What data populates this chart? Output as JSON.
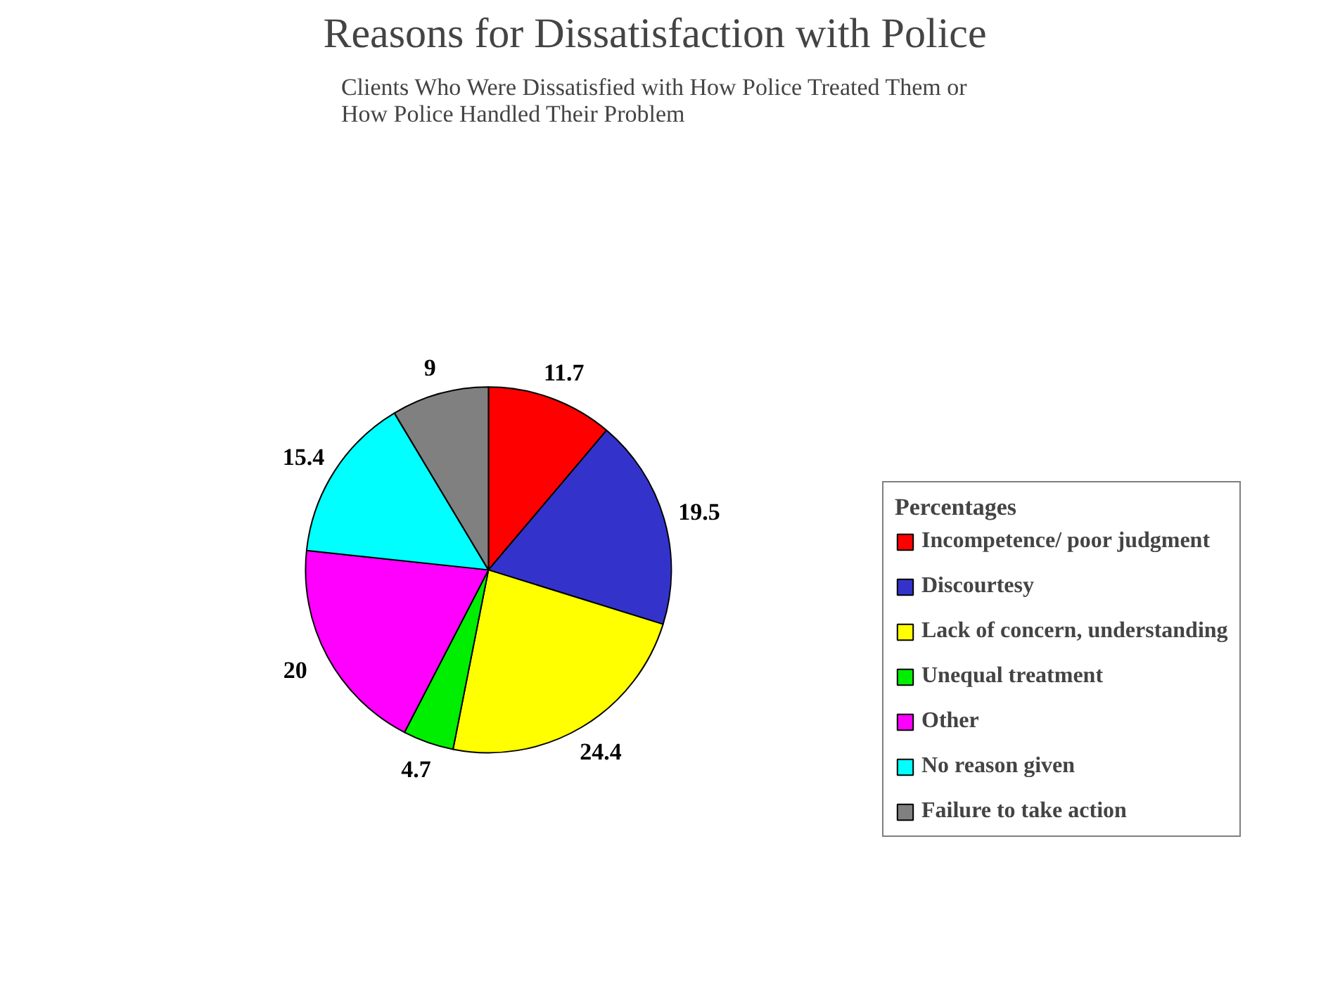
{
  "chart_data": {
    "type": "pie",
    "title": "Reasons for Dissatisfaction with Police",
    "subtitle": "Clients Who Were Dissatisfied with How Police Treated Them or\nHow Police Handled Their Problem",
    "legend_title": "Percentages",
    "categories": [
      "Incompetence/ poor judgment",
      "Discourtesy",
      "Lack of concern, understanding",
      "Unequal treatment",
      "Other",
      "No reason given",
      "Failure to take action"
    ],
    "values": [
      11.7,
      19.5,
      24.4,
      4.7,
      20,
      15.4,
      9
    ],
    "colors": [
      "#ff0000",
      "#3333cc",
      "#ffff00",
      "#00ee00",
      "#ff00ff",
      "#00ffff",
      "#808080"
    ],
    "data_labels": true,
    "legend": "right"
  }
}
